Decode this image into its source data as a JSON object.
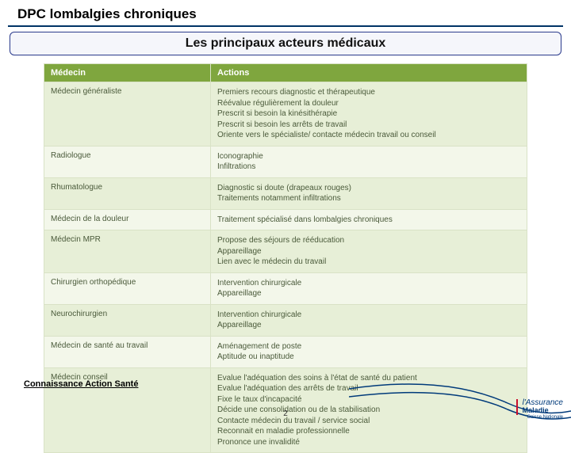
{
  "page": {
    "title": "DPC lombalgies chroniques",
    "banner": "Les principaux acteurs médicaux",
    "footer_label": "Connaissance Action Santé",
    "page_number": "2",
    "logo_line1": "l'Assurance",
    "logo_line2": "Maladie",
    "logo_sub": "Caisse Nationale"
  },
  "table": {
    "header_left": "Médecin",
    "header_right": "Actions",
    "rows": [
      {
        "role": "Médecin généraliste",
        "actions": "Premiers recours diagnostic et thérapeutique\nRéévalue régulièrement la douleur\nPrescrit si besoin la kinésithérapie\nPrescrit si besoin les arrêts de travail\nOriente vers le spécialiste/ contacte médecin travail ou conseil"
      },
      {
        "role": "Radiologue",
        "actions": "Iconographie\nInfiltrations"
      },
      {
        "role": "Rhumatologue",
        "actions": "Diagnostic si doute (drapeaux rouges)\nTraitements notamment infiltrations"
      },
      {
        "role": "Médecin de la douleur",
        "actions": "Traitement spécialisé dans lombalgies chroniques"
      },
      {
        "role": "Médecin MPR",
        "actions": "Propose des séjours de rééducation\nAppareillage\nLien avec le médecin du travail"
      },
      {
        "role": "Chirurgien orthopédique",
        "actions": "Intervention chirurgicale\nAppareillage"
      },
      {
        "role": "Neurochirurgien",
        "actions": "Intervention chirurgicale\nAppareillage"
      },
      {
        "role": "Médecin de santé au travail",
        "actions": "Aménagement de poste\nAptitude ou inaptitude"
      },
      {
        "role": "Médecin conseil",
        "actions": "Evalue l'adéquation des soins à l'état de santé du patient\nEvalue l'adéquation des arrêts de travail\nFixe le taux d'incapacité\nDécide une consolidation ou de la stabilisation\nContacte médecin du travail / service social\nReconnait en maladie professionnelle\nPrononce une invalidité"
      }
    ]
  },
  "colors": {
    "header_bg": "#7fa63e",
    "row_even": "#e7efd7",
    "row_odd": "#f3f7ea",
    "border": "#d9e2c6",
    "brand_blue": "#003a7a",
    "brand_red": "#c8102e"
  }
}
